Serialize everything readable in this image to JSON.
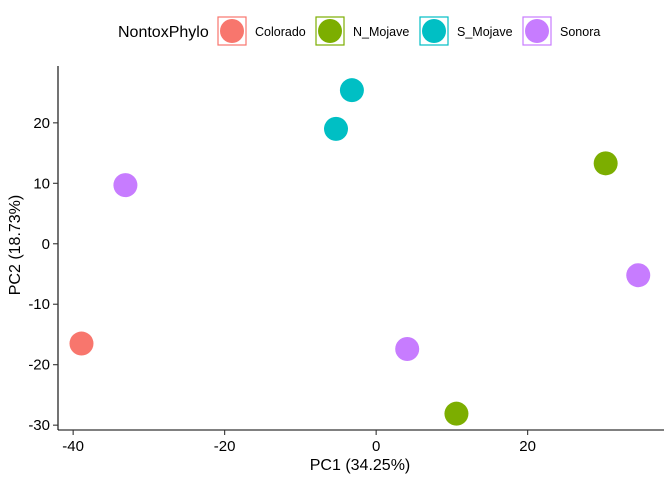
{
  "chart_data": {
    "type": "scatter",
    "title": "",
    "xlabel": "PC1 (34.25%)",
    "ylabel": "PC2 (18.73%)",
    "xlim": [
      -42,
      38
    ],
    "ylim": [
      -30.8,
      29.4
    ],
    "xticks": [
      -40,
      -20,
      0,
      20
    ],
    "yticks": [
      -30,
      -20,
      -10,
      0,
      10,
      20
    ],
    "grid": false,
    "legend": {
      "title": "NontoxPhylo",
      "position": "top"
    },
    "series": [
      {
        "name": "Colorado",
        "color": "#F8766D",
        "points": [
          {
            "x": -38.9,
            "y": -16.5
          }
        ]
      },
      {
        "name": "N_Mojave",
        "color": "#7CAE00",
        "points": [
          {
            "x": 30.3,
            "y": 13.3
          },
          {
            "x": 10.6,
            "y": -28.1
          }
        ]
      },
      {
        "name": "S_Mojave",
        "color": "#00BFC4",
        "points": [
          {
            "x": -3.2,
            "y": 25.4
          },
          {
            "x": -5.3,
            "y": 19.0
          }
        ]
      },
      {
        "name": "Sonora",
        "color": "#C77CFF",
        "points": [
          {
            "x": -33.1,
            "y": 9.7
          },
          {
            "x": 34.6,
            "y": -5.2
          },
          {
            "x": 4.1,
            "y": -17.4
          }
        ]
      }
    ]
  }
}
